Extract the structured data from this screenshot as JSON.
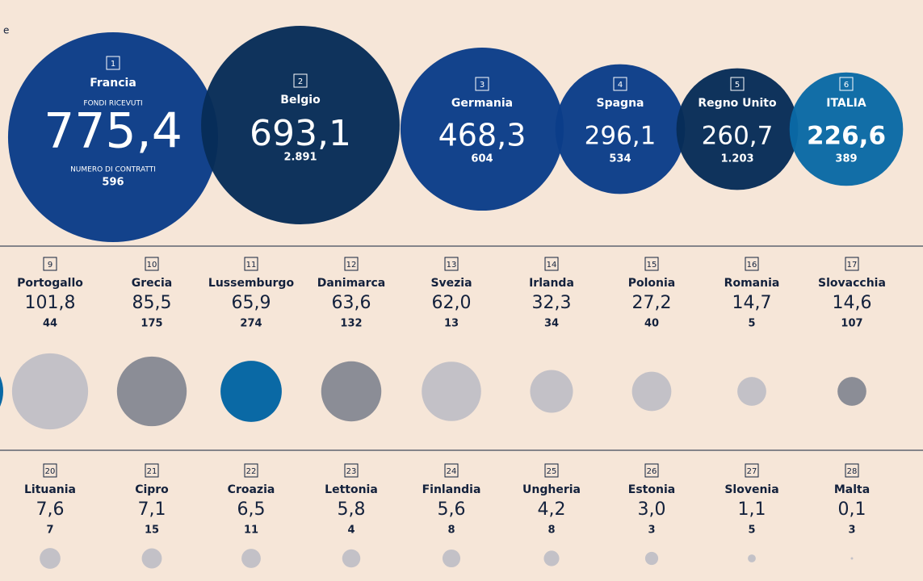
{
  "intro_fragment": "e",
  "labels": {
    "funds": "FONDI RICEVUTI",
    "contracts": "NUMERO DI CONTRATTI"
  },
  "rows": [
    [
      {
        "rank": "1",
        "name": "Francia",
        "funds": 775.4,
        "funds_label": "775,4",
        "contracts": "596",
        "color": "#0b3c88"
      },
      {
        "rank": "2",
        "name": "Belgio",
        "funds": 693.1,
        "funds_label": "693,1",
        "contracts": "2.891",
        "color": "#072c58"
      },
      {
        "rank": "3",
        "name": "Germania",
        "funds": 468.3,
        "funds_label": "468,3",
        "contracts": "604",
        "color": "#0b3d89"
      },
      {
        "rank": "4",
        "name": "Spagna",
        "funds": 296.1,
        "funds_label": "296,1",
        "contracts": "534",
        "color": "#0b3d89"
      },
      {
        "rank": "5",
        "name": "Regno Unito",
        "funds": 260.7,
        "funds_label": "260,7",
        "contracts": "1.203",
        "color": "#072c58"
      },
      {
        "rank": "6",
        "name": "ITALIA",
        "funds": 226.6,
        "funds_label": "226,6",
        "contracts": "389",
        "color": "#0a69a5"
      }
    ],
    [
      {
        "rank": "9",
        "name": "Portogallo",
        "funds": 101.8,
        "funds_label": "101,8",
        "contracts": "44",
        "color": "#c3c1c7"
      },
      {
        "rank": "10",
        "name": "Grecia",
        "funds": 85.5,
        "funds_label": "85,5",
        "contracts": "175",
        "color": "#8b8d96"
      },
      {
        "rank": "11",
        "name": "Lussemburgo",
        "funds": 65.9,
        "funds_label": "65,9",
        "contracts": "274",
        "color": "#0a69a5"
      },
      {
        "rank": "12",
        "name": "Danimarca",
        "funds": 63.6,
        "funds_label": "63,6",
        "contracts": "132",
        "color": "#8b8d96"
      },
      {
        "rank": "13",
        "name": "Svezia",
        "funds": 62.0,
        "funds_label": "62,0",
        "contracts": "13",
        "color": "#c3c1c7"
      },
      {
        "rank": "14",
        "name": "Irlanda",
        "funds": 32.3,
        "funds_label": "32,3",
        "contracts": "34",
        "color": "#c3c1c7"
      },
      {
        "rank": "15",
        "name": "Polonia",
        "funds": 27.2,
        "funds_label": "27,2",
        "contracts": "40",
        "color": "#c3c1c7"
      },
      {
        "rank": "16",
        "name": "Romania",
        "funds": 14.7,
        "funds_label": "14,7",
        "contracts": "5",
        "color": "#c3c1c7"
      },
      {
        "rank": "17",
        "name": "Slovacchia",
        "funds": 14.6,
        "funds_label": "14,6",
        "contracts": "107",
        "color": "#8b8d96"
      }
    ],
    [
      {
        "rank": "20",
        "name": "Lituania",
        "funds": 7.6,
        "funds_label": "7,6",
        "contracts": "7",
        "color": "#c3c1c7"
      },
      {
        "rank": "21",
        "name": "Cipro",
        "funds": 7.1,
        "funds_label": "7,1",
        "contracts": "15",
        "color": "#c3c1c7"
      },
      {
        "rank": "22",
        "name": "Croazia",
        "funds": 6.5,
        "funds_label": "6,5",
        "contracts": "11",
        "color": "#c3c1c7"
      },
      {
        "rank": "23",
        "name": "Lettonia",
        "funds": 5.8,
        "funds_label": "5,8",
        "contracts": "4",
        "color": "#c3c1c7"
      },
      {
        "rank": "24",
        "name": "Finlandia",
        "funds": 5.6,
        "funds_label": "5,6",
        "contracts": "8",
        "color": "#c3c1c7"
      },
      {
        "rank": "25",
        "name": "Ungheria",
        "funds": 4.2,
        "funds_label": "4,2",
        "contracts": "8",
        "color": "#c3c1c7"
      },
      {
        "rank": "26",
        "name": "Estonia",
        "funds": 3.0,
        "funds_label": "3,0",
        "contracts": "3",
        "color": "#c3c1c7"
      },
      {
        "rank": "27",
        "name": "Slovenia",
        "funds": 1.1,
        "funds_label": "1,1",
        "contracts": "5",
        "color": "#c3c1c7"
      },
      {
        "rank": "28",
        "name": "Malta",
        "funds": 0.1,
        "funds_label": "0,1",
        "contracts": "3",
        "color": "#c3c1c7"
      }
    ]
  ]
}
